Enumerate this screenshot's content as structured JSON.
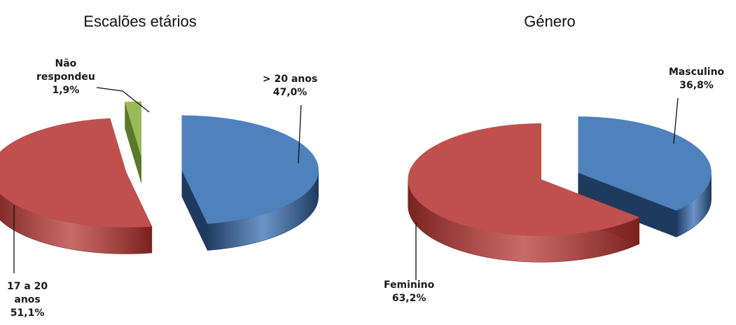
{
  "chart_data": [
    {
      "type": "pie",
      "title": "Escalões etários",
      "slices": [
        {
          "name": "> 20 anos",
          "value": 47.0,
          "label_lines": [
            "> 20 anos",
            "47,0%"
          ],
          "color": "#4f81bd",
          "side_color": "#1f3a5f"
        },
        {
          "name": "17 a 20 anos",
          "value": 51.1,
          "label_lines": [
            "17 a 20",
            "anos",
            "51,1%"
          ],
          "color": "#c0504d",
          "side_color": "#7a2220"
        },
        {
          "name": "Não respondeu",
          "value": 1.9,
          "label_lines": [
            "Não",
            "respondeu",
            "1,9%"
          ],
          "color": "#9bbb59",
          "side_color": "#5a7a2a"
        }
      ]
    },
    {
      "type": "pie",
      "title": "Género",
      "slices": [
        {
          "name": "Masculino",
          "value": 36.8,
          "label_lines": [
            "Masculino",
            "36,8%"
          ],
          "color": "#4f81bd",
          "side_color": "#1f3a5f"
        },
        {
          "name": "Feminino",
          "value": 63.2,
          "label_lines": [
            "Feminino",
            "63,2%"
          ],
          "color": "#c0504d",
          "side_color": "#7a2220"
        }
      ]
    }
  ]
}
